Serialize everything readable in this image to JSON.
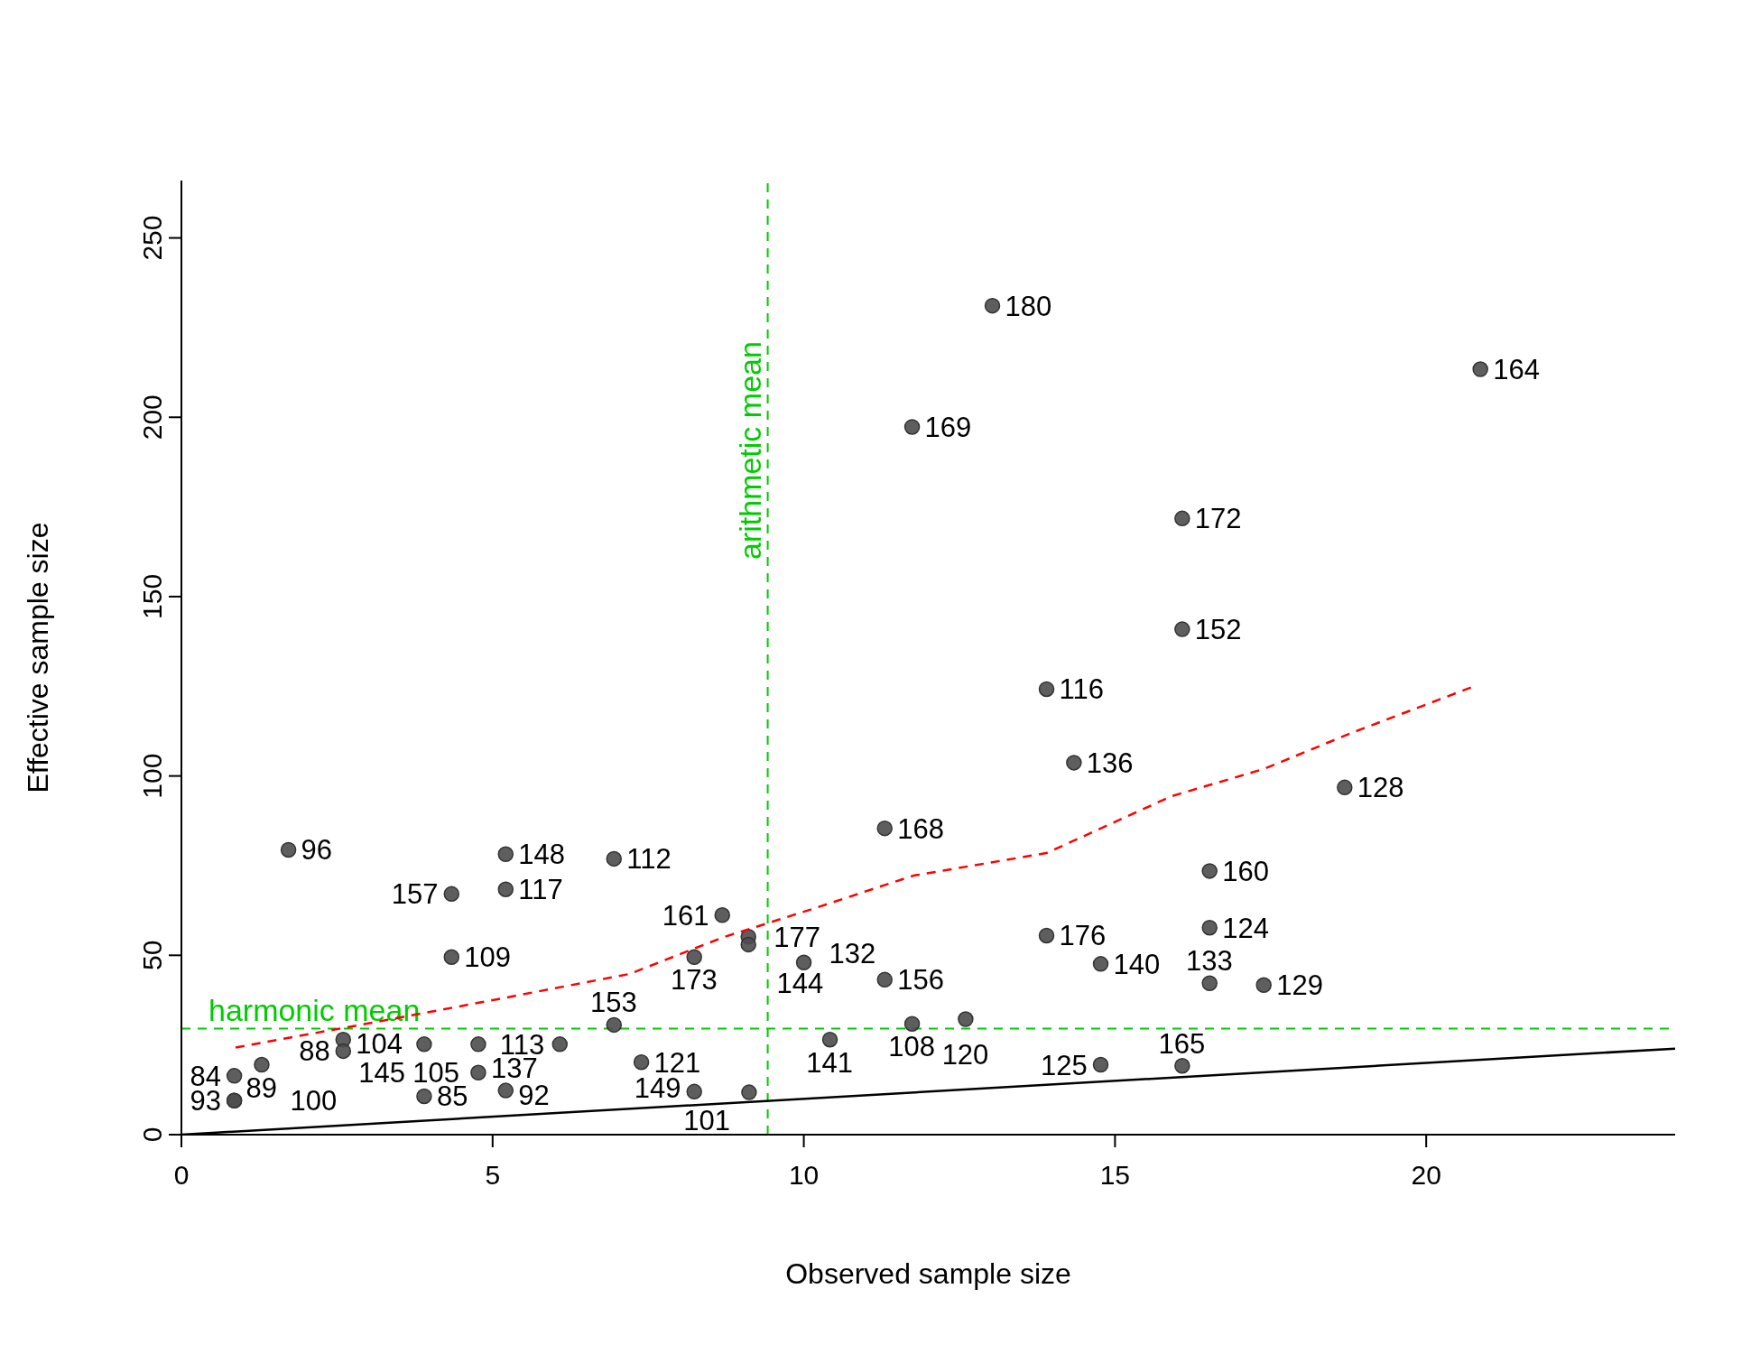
{
  "chart_data": {
    "type": "scatter",
    "xlabel": "Observed sample size",
    "ylabel": "Effective sample size",
    "xlim": [
      0,
      24
    ],
    "ylim": [
      0,
      266
    ],
    "xticks": [
      0,
      5,
      10,
      15,
      20
    ],
    "yticks": [
      0,
      50,
      100,
      150,
      200,
      250
    ],
    "grid": false,
    "legend": false,
    "series": [
      {
        "type": "scatter",
        "color": "#4d4d4d",
        "marker": "circle",
        "x": [
          1.72,
          5.21,
          6.95,
          4.34,
          5.21,
          4.34,
          8.69,
          9.11,
          9.11,
          8.24,
          10.0,
          11.3,
          11.3,
          10.42,
          11.74,
          12.6,
          13.9,
          14.34,
          13.9,
          14.77,
          14.77,
          16.08,
          13.03,
          11.74,
          16.08,
          16.08,
          20.87,
          18.69,
          16.52,
          16.52,
          16.52,
          17.39,
          6.95,
          6.08,
          7.39,
          8.24,
          9.12,
          2.6,
          2.6,
          3.9,
          4.77,
          4.77,
          5.21,
          3.9,
          1.29,
          0.85,
          0.85,
          0.85
        ],
        "values": [
          79.4,
          78.2,
          76.9,
          67.1,
          68.4,
          49.5,
          61.2,
          55.2,
          53.0,
          49.5,
          48.0,
          85.4,
          43.2,
          26.5,
          30.9,
          32.2,
          124.2,
          103.7,
          55.5,
          47.6,
          19.5,
          19.2,
          231.1,
          197.3,
          171.8,
          140.9,
          213.4,
          96.8,
          73.5,
          57.7,
          42.2,
          41.7,
          30.6,
          25.2,
          20.2,
          12.0,
          11.8,
          26.5,
          23.3,
          25.2,
          25.2,
          17.3,
          12.3,
          10.7,
          19.5,
          16.4,
          9.5,
          9.5
        ]
      },
      {
        "type": "line",
        "color": "#ff0000",
        "marker": "none",
        "line_style": "dashed",
        "x": [
          0.87,
          3,
          5,
          7.2,
          8.7,
          10.1,
          11.76,
          13.9,
          15.9,
          17.4,
          18.8,
          20.8
        ],
        "values": [
          24.3,
          31,
          37.5,
          44.8,
          55,
          62.7,
          72.2,
          78.5,
          94.3,
          102,
          112,
          125.2
        ]
      },
      {
        "type": "line",
        "color": "#000000",
        "marker": "none",
        "line_style": "solid",
        "x": [
          0,
          24
        ],
        "values": [
          0,
          24
        ]
      }
    ],
    "ref_lines": [
      {
        "axis": "y",
        "value": 29.6,
        "label": "harmonic mean",
        "color": "#00cc00",
        "line_style": "dashed"
      },
      {
        "axis": "x",
        "value": 9.42,
        "label": "arithmetic mean",
        "color": "#00cc00",
        "line_style": "dashed"
      }
    ],
    "annotations": [
      {
        "text": "96",
        "x": 1.72,
        "y": 79.4
      },
      {
        "text": "148",
        "x": 5.21,
        "y": 78.2
      },
      {
        "text": "112",
        "x": 6.95,
        "y": 76.9
      },
      {
        "text": "157",
        "x": 4.34,
        "y": 67.1
      },
      {
        "text": "117",
        "x": 5.21,
        "y": 68.4
      },
      {
        "text": "109",
        "x": 4.34,
        "y": 49.5
      },
      {
        "text": "161",
        "x": 8.69,
        "y": 61.2
      },
      {
        "text": "177",
        "x": 9.11,
        "y": 55.2
      },
      {
        "text": "144",
        "x": 9.11,
        "y": 53.0
      },
      {
        "text": "173",
        "x": 8.24,
        "y": 49.5
      },
      {
        "text": "132",
        "x": 10.0,
        "y": 48.0
      },
      {
        "text": "168",
        "x": 11.3,
        "y": 85.4
      },
      {
        "text": "156",
        "x": 11.3,
        "y": 43.2
      },
      {
        "text": "141",
        "x": 10.42,
        "y": 26.5
      },
      {
        "text": "108",
        "x": 11.74,
        "y": 30.9
      },
      {
        "text": "120",
        "x": 12.6,
        "y": 32.2
      },
      {
        "text": "116",
        "x": 13.9,
        "y": 124.2
      },
      {
        "text": "136",
        "x": 14.34,
        "y": 103.7
      },
      {
        "text": "176",
        "x": 13.9,
        "y": 55.5
      },
      {
        "text": "140",
        "x": 14.77,
        "y": 47.6
      },
      {
        "text": "125",
        "x": 14.77,
        "y": 19.5
      },
      {
        "text": "165",
        "x": 16.08,
        "y": 19.2
      },
      {
        "text": "180",
        "x": 13.03,
        "y": 231.1
      },
      {
        "text": "169",
        "x": 11.74,
        "y": 197.3
      },
      {
        "text": "172",
        "x": 16.08,
        "y": 171.8
      },
      {
        "text": "152",
        "x": 16.08,
        "y": 140.9
      },
      {
        "text": "164",
        "x": 20.87,
        "y": 213.4
      },
      {
        "text": "128",
        "x": 18.69,
        "y": 96.8
      },
      {
        "text": "160",
        "x": 16.52,
        "y": 73.5
      },
      {
        "text": "124",
        "x": 16.52,
        "y": 57.7
      },
      {
        "text": "133",
        "x": 16.52,
        "y": 42.2
      },
      {
        "text": "129",
        "x": 17.39,
        "y": 41.7
      },
      {
        "text": "153",
        "x": 6.95,
        "y": 30.6
      },
      {
        "text": "113",
        "x": 6.08,
        "y": 25.2
      },
      {
        "text": "121",
        "x": 7.39,
        "y": 20.2
      },
      {
        "text": "149",
        "x": 8.24,
        "y": 12.0
      },
      {
        "text": "101",
        "x": 9.12,
        "y": 11.8
      },
      {
        "text": "104",
        "x": 2.6,
        "y": 26.5
      },
      {
        "text": "88",
        "x": 2.6,
        "y": 23.3
      },
      {
        "text": "145",
        "x": 3.9,
        "y": 25.2
      },
      {
        "text": "105",
        "x": 4.77,
        "y": 25.2
      },
      {
        "text": "137",
        "x": 4.77,
        "y": 17.3
      },
      {
        "text": "92",
        "x": 5.21,
        "y": 12.3
      },
      {
        "text": "85",
        "x": 3.9,
        "y": 10.7
      },
      {
        "text": "89",
        "x": 1.29,
        "y": 19.5
      },
      {
        "text": "84",
        "x": 0.85,
        "y": 16.4
      },
      {
        "text": "93",
        "x": 0.85,
        "y": 9.5
      },
      {
        "text": "100",
        "x": 0.85,
        "y": 9.5
      }
    ]
  }
}
